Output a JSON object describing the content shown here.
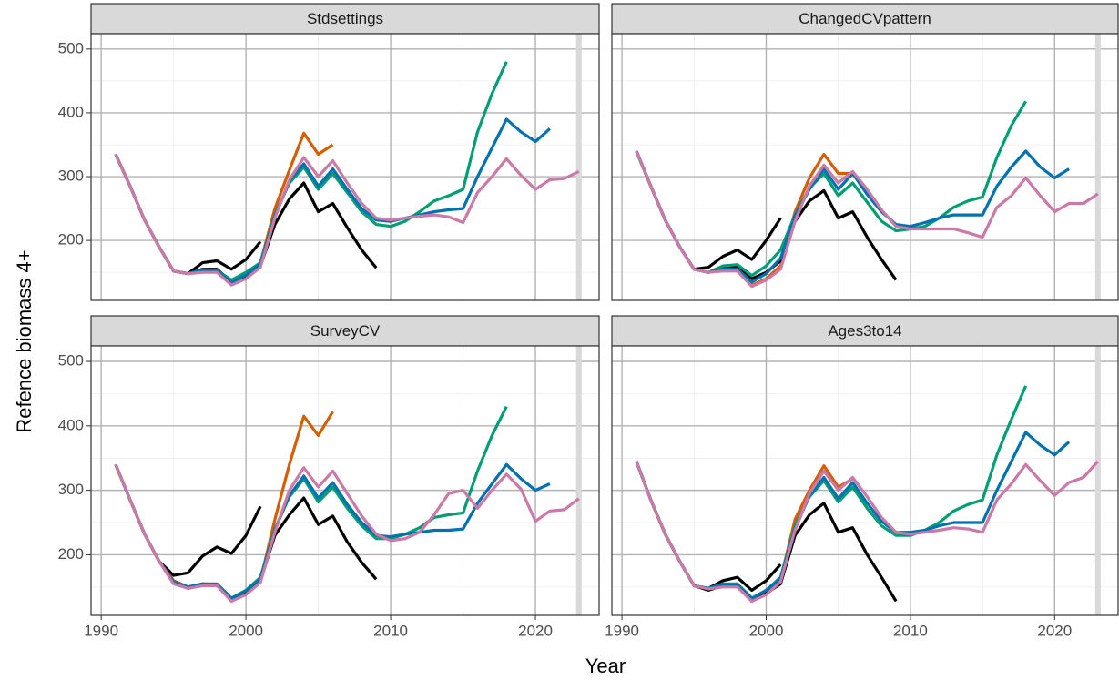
{
  "xlabel": "Year",
  "ylabel": "Refence biomass 4+",
  "chart_data": [
    {
      "type": "line",
      "title": "Stdsettings",
      "x": [
        1991,
        1992,
        1993,
        1994,
        1995,
        1996,
        1997,
        1998,
        1999,
        2000,
        2001,
        2002,
        2003,
        2004,
        2005,
        2006,
        2007,
        2008,
        2009,
        2010,
        2011,
        2012,
        2013,
        2014,
        2015,
        2016,
        2017,
        2018,
        2019,
        2020,
        2021,
        2022,
        2023
      ],
      "xlim": [
        1989.3,
        2024.4
      ],
      "xticks": [
        1990,
        2000,
        2010,
        2020
      ],
      "ylim": [
        106,
        524
      ],
      "yticks": [
        200,
        300,
        400,
        500
      ],
      "grid": true,
      "highlight_x": 2023,
      "series": [
        {
          "color": "#000000",
          "values": [
            335,
            285,
            232,
            190,
            152,
            148,
            165,
            168,
            155,
            170,
            198,
            null,
            null,
            null,
            null,
            null,
            null,
            null,
            null,
            null,
            null,
            null,
            null,
            null,
            null,
            null,
            null,
            null,
            null,
            null,
            null,
            null,
            null
          ]
        },
        {
          "color": "#D55E00",
          "values": [
            335,
            285,
            232,
            190,
            152,
            148,
            152,
            152,
            132,
            142,
            165,
            250,
            310,
            368,
            335,
            350,
            null,
            null,
            null,
            null,
            null,
            null,
            null,
            null,
            null,
            null,
            null,
            null,
            null,
            null,
            null,
            null,
            null
          ]
        },
        {
          "color": "#000000",
          "values": [
            335,
            285,
            232,
            190,
            152,
            148,
            155,
            155,
            135,
            145,
            160,
            225,
            265,
            290,
            245,
            258,
            220,
            185,
            157,
            null,
            null,
            null,
            null,
            null,
            null,
            null,
            null,
            null,
            null,
            null,
            null,
            null,
            null
          ]
        },
        {
          "color": "#009E73",
          "values": [
            335,
            285,
            232,
            190,
            152,
            148,
            154,
            153,
            138,
            150,
            165,
            240,
            290,
            315,
            280,
            305,
            275,
            245,
            225,
            222,
            230,
            245,
            262,
            270,
            280,
            370,
            430,
            480,
            null,
            null,
            null,
            null,
            null
          ]
        },
        {
          "color": "#0072B2",
          "values": [
            335,
            285,
            232,
            190,
            152,
            148,
            153,
            152,
            134,
            146,
            163,
            238,
            293,
            320,
            285,
            312,
            280,
            250,
            232,
            230,
            235,
            240,
            245,
            248,
            250,
            300,
            345,
            390,
            370,
            355,
            375,
            null,
            null
          ]
        },
        {
          "color": "#CC79A7",
          "values": [
            335,
            285,
            232,
            190,
            152,
            148,
            150,
            150,
            130,
            140,
            158,
            235,
            295,
            330,
            300,
            325,
            290,
            258,
            235,
            232,
            235,
            238,
            240,
            237,
            228,
            275,
            300,
            328,
            302,
            280,
            295,
            297,
            308
          ]
        }
      ]
    },
    {
      "type": "line",
      "title": "ChangedCVpattern",
      "x": [
        1991,
        1992,
        1993,
        1994,
        1995,
        1996,
        1997,
        1998,
        1999,
        2000,
        2001,
        2002,
        2003,
        2004,
        2005,
        2006,
        2007,
        2008,
        2009,
        2010,
        2011,
        2012,
        2013,
        2014,
        2015,
        2016,
        2017,
        2018,
        2019,
        2020,
        2021,
        2022,
        2023
      ],
      "xlim": [
        1989.3,
        2024.4
      ],
      "xticks": [
        1990,
        2000,
        2010,
        2020
      ],
      "ylim": [
        106,
        524
      ],
      "yticks": [
        200,
        300,
        400,
        500
      ],
      "grid": true,
      "highlight_x": 2023,
      "series": [
        {
          "color": "#000000",
          "values": [
            340,
            285,
            232,
            190,
            155,
            158,
            175,
            185,
            170,
            200,
            235,
            null,
            null,
            null,
            null,
            null,
            null,
            null,
            null,
            null,
            null,
            null,
            null,
            null,
            null,
            null,
            null,
            null,
            null,
            null,
            null,
            null,
            null
          ]
        },
        {
          "color": "#D55E00",
          "values": [
            340,
            285,
            232,
            190,
            155,
            150,
            155,
            152,
            130,
            140,
            160,
            245,
            298,
            335,
            305,
            305,
            null,
            null,
            null,
            null,
            null,
            null,
            null,
            null,
            null,
            null,
            null,
            null,
            null,
            null,
            null,
            null,
            null
          ]
        },
        {
          "color": "#000000",
          "values": [
            340,
            285,
            232,
            190,
            155,
            150,
            158,
            158,
            140,
            150,
            168,
            230,
            262,
            278,
            235,
            245,
            205,
            170,
            138,
            null,
            null,
            null,
            null,
            null,
            null,
            null,
            null,
            null,
            null,
            null,
            null,
            null,
            null
          ]
        },
        {
          "color": "#009E73",
          "values": [
            340,
            285,
            232,
            190,
            155,
            150,
            160,
            162,
            145,
            160,
            185,
            240,
            282,
            305,
            270,
            290,
            260,
            230,
            215,
            218,
            222,
            235,
            252,
            262,
            268,
            330,
            380,
            418,
            null,
            null,
            null,
            null,
            null
          ]
        },
        {
          "color": "#0072B2",
          "values": [
            340,
            285,
            232,
            190,
            155,
            150,
            155,
            155,
            135,
            148,
            172,
            238,
            280,
            312,
            280,
            305,
            272,
            245,
            225,
            222,
            228,
            235,
            240,
            240,
            240,
            285,
            315,
            340,
            315,
            298,
            312,
            null,
            null
          ]
        },
        {
          "color": "#CC79A7",
          "values": [
            340,
            285,
            232,
            190,
            155,
            150,
            152,
            152,
            128,
            138,
            155,
            230,
            285,
            318,
            290,
            308,
            280,
            248,
            222,
            218,
            218,
            218,
            218,
            212,
            205,
            252,
            270,
            298,
            270,
            245,
            258,
            258,
            273
          ]
        }
      ]
    },
    {
      "type": "line",
      "title": "SurveyCV",
      "x": [
        1991,
        1992,
        1993,
        1994,
        1995,
        1996,
        1997,
        1998,
        1999,
        2000,
        2001,
        2002,
        2003,
        2004,
        2005,
        2006,
        2007,
        2008,
        2009,
        2010,
        2011,
        2012,
        2013,
        2014,
        2015,
        2016,
        2017,
        2018,
        2019,
        2020,
        2021,
        2022,
        2023
      ],
      "xlim": [
        1989.3,
        2024.4
      ],
      "xticks": [
        1990,
        2000,
        2010,
        2020
      ],
      "ylim": [
        106,
        524
      ],
      "yticks": [
        200,
        300,
        400,
        500
      ],
      "grid": true,
      "highlight_x": 2023,
      "series": [
        {
          "color": "#000000",
          "values": [
            340,
            285,
            232,
            190,
            168,
            172,
            198,
            212,
            202,
            230,
            275,
            null,
            null,
            null,
            null,
            null,
            null,
            null,
            null,
            null,
            null,
            null,
            null,
            null,
            null,
            null,
            null,
            null,
            null,
            null,
            null,
            null,
            null
          ]
        },
        {
          "color": "#D55E00",
          "values": [
            340,
            285,
            232,
            190,
            160,
            150,
            155,
            153,
            130,
            140,
            160,
            255,
            340,
            415,
            385,
            422,
            null,
            null,
            null,
            null,
            null,
            null,
            null,
            null,
            null,
            null,
            null,
            null,
            null,
            null,
            null,
            null,
            null
          ]
        },
        {
          "color": "#000000",
          "values": [
            340,
            285,
            232,
            190,
            158,
            148,
            153,
            152,
            130,
            142,
            160,
            230,
            262,
            288,
            247,
            260,
            220,
            188,
            162,
            null,
            null,
            null,
            null,
            null,
            null,
            null,
            null,
            null,
            null,
            null,
            null,
            null,
            null
          ]
        },
        {
          "color": "#009E73",
          "values": [
            340,
            285,
            232,
            190,
            158,
            150,
            155,
            155,
            133,
            145,
            165,
            240,
            290,
            318,
            282,
            305,
            272,
            245,
            225,
            225,
            232,
            242,
            258,
            262,
            265,
            330,
            385,
            430,
            null,
            null,
            null,
            null,
            null
          ]
        },
        {
          "color": "#0072B2",
          "values": [
            340,
            285,
            232,
            190,
            158,
            150,
            155,
            154,
            132,
            144,
            163,
            238,
            292,
            322,
            288,
            312,
            278,
            250,
            230,
            228,
            232,
            235,
            238,
            238,
            240,
            280,
            310,
            340,
            318,
            300,
            310,
            null,
            null
          ]
        },
        {
          "color": "#CC79A7",
          "values": [
            340,
            285,
            232,
            190,
            155,
            148,
            152,
            152,
            128,
            138,
            157,
            235,
            300,
            335,
            305,
            330,
            295,
            260,
            232,
            222,
            225,
            235,
            262,
            295,
            300,
            272,
            300,
            325,
            302,
            252,
            268,
            270,
            287
          ]
        }
      ]
    },
    {
      "type": "line",
      "title": "Ages3to14",
      "x": [
        1991,
        1992,
        1993,
        1994,
        1995,
        1996,
        1997,
        1998,
        1999,
        2000,
        2001,
        2002,
        2003,
        2004,
        2005,
        2006,
        2007,
        2008,
        2009,
        2010,
        2011,
        2012,
        2013,
        2014,
        2015,
        2016,
        2017,
        2018,
        2019,
        2020,
        2021,
        2022,
        2023
      ],
      "xlim": [
        1989.3,
        2024.4
      ],
      "xticks": [
        1990,
        2000,
        2010,
        2020
      ],
      "ylim": [
        106,
        524
      ],
      "yticks": [
        200,
        300,
        400,
        500
      ],
      "grid": true,
      "highlight_x": 2023,
      "series": [
        {
          "color": "#000000",
          "values": [
            345,
            285,
            232,
            190,
            152,
            148,
            160,
            165,
            145,
            160,
            185,
            null,
            null,
            null,
            null,
            null,
            null,
            null,
            null,
            null,
            null,
            null,
            null,
            null,
            null,
            null,
            null,
            null,
            null,
            null,
            null,
            null,
            null
          ]
        },
        {
          "color": "#D55E00",
          "values": [
            345,
            285,
            232,
            190,
            152,
            148,
            152,
            155,
            128,
            140,
            162,
            255,
            300,
            338,
            305,
            318,
            null,
            null,
            null,
            null,
            null,
            null,
            null,
            null,
            null,
            null,
            null,
            null,
            null,
            null,
            null,
            null,
            null
          ]
        },
        {
          "color": "#000000",
          "values": [
            345,
            285,
            232,
            190,
            152,
            145,
            152,
            152,
            128,
            140,
            155,
            230,
            262,
            280,
            235,
            242,
            200,
            165,
            128,
            null,
            null,
            null,
            null,
            null,
            null,
            null,
            null,
            null,
            null,
            null,
            null,
            null,
            null
          ]
        },
        {
          "color": "#009E73",
          "values": [
            345,
            285,
            232,
            190,
            152,
            148,
            155,
            155,
            133,
            145,
            165,
            245,
            290,
            315,
            282,
            305,
            272,
            245,
            230,
            230,
            238,
            250,
            268,
            278,
            285,
            355,
            410,
            462,
            null,
            null,
            null,
            null,
            null
          ]
        },
        {
          "color": "#0072B2",
          "values": [
            345,
            285,
            232,
            190,
            152,
            148,
            154,
            153,
            132,
            145,
            163,
            240,
            292,
            320,
            287,
            312,
            280,
            252,
            235,
            235,
            238,
            245,
            250,
            250,
            250,
            300,
            345,
            390,
            370,
            355,
            375,
            null,
            null
          ]
        },
        {
          "color": "#CC79A7",
          "values": [
            345,
            285,
            232,
            190,
            152,
            147,
            150,
            150,
            128,
            138,
            158,
            238,
            295,
            330,
            300,
            320,
            290,
            258,
            235,
            232,
            235,
            238,
            242,
            240,
            235,
            285,
            310,
            340,
            315,
            292,
            312,
            320,
            345
          ]
        }
      ]
    }
  ]
}
